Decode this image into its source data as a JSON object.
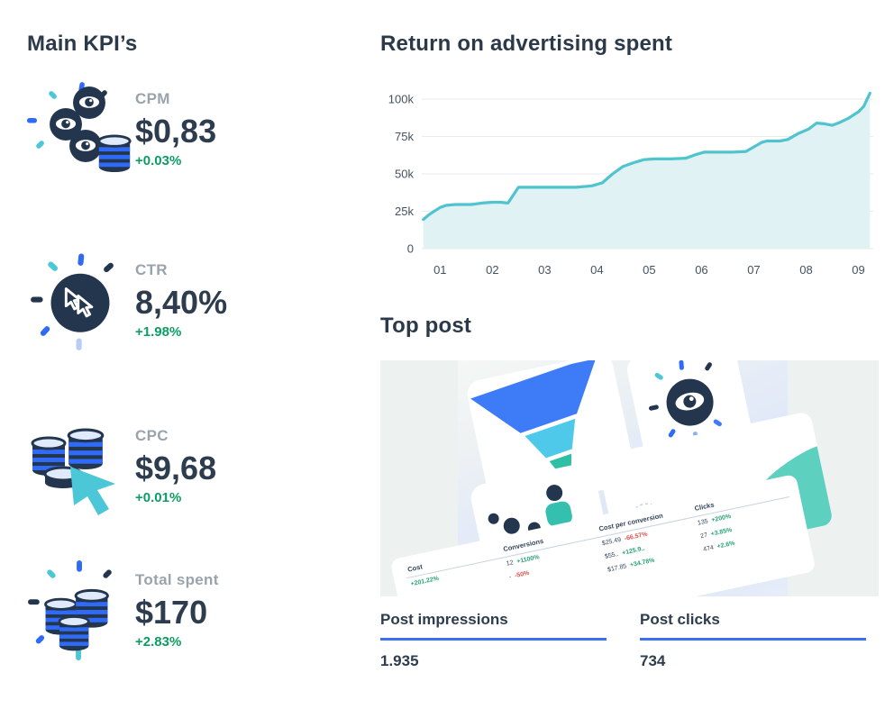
{
  "colors": {
    "navy_text": "#2d3c4e",
    "label_gray": "#99a3ac",
    "positive_green": "#0b9d63",
    "stat_underline_blue": "#3b70f1",
    "icon_blue": "#2f6bf6",
    "icon_teal": "#4cc7d7"
  },
  "kpi_section": {
    "title": "Main KPI’s",
    "items": [
      {
        "label": "CPM",
        "value": "$0,83",
        "delta": "+0.03%",
        "icon": "eyes-and-coins-icon"
      },
      {
        "label": "CTR",
        "value": "8,40%",
        "delta": "+1.98%",
        "icon": "click-cursor-circle-icon"
      },
      {
        "label": "CPC",
        "value": "$9,68",
        "delta": "+0.01%",
        "icon": "coins-with-cursor-icon"
      },
      {
        "label": "Total spent",
        "value": "$170",
        "delta": "+2.83%",
        "icon": "coin-stacks-sparkle-icon"
      }
    ]
  },
  "roas_section": {
    "title": "Return on advertising spent"
  },
  "chart_data": {
    "type": "area",
    "title": "Return on advertising spent",
    "x_ticks": [
      "01",
      "02",
      "03",
      "04",
      "05",
      "06",
      "07",
      "08",
      "09"
    ],
    "y_ticks": [
      "0",
      "25k",
      "50k",
      "75k",
      "100k"
    ],
    "y_values": [
      0,
      25000,
      50000,
      75000,
      100000
    ],
    "x_range": [
      0.65,
      9.25
    ],
    "ylim": [
      0,
      110000
    ],
    "grid": true,
    "legend": false,
    "line_color": "#4fc4cf",
    "fill_color": "#e1f2f5",
    "points": [
      [
        0.68,
        19500
      ],
      [
        0.8,
        23000
      ],
      [
        1.0,
        27500
      ],
      [
        1.12,
        29000
      ],
      [
        1.3,
        29500
      ],
      [
        1.6,
        29500
      ],
      [
        1.8,
        30500
      ],
      [
        2.0,
        31000
      ],
      [
        2.15,
        31000
      ],
      [
        2.3,
        30500
      ],
      [
        2.5,
        41000
      ],
      [
        2.8,
        41000
      ],
      [
        3.2,
        41000
      ],
      [
        3.6,
        41000
      ],
      [
        3.9,
        42000
      ],
      [
        4.1,
        44000
      ],
      [
        4.3,
        50000
      ],
      [
        4.5,
        55000
      ],
      [
        4.7,
        57500
      ],
      [
        4.9,
        59500
      ],
      [
        5.1,
        60000
      ],
      [
        5.4,
        60000
      ],
      [
        5.7,
        60500
      ],
      [
        5.9,
        63000
      ],
      [
        6.05,
        64500
      ],
      [
        6.35,
        64500
      ],
      [
        6.6,
        64500
      ],
      [
        6.85,
        65000
      ],
      [
        7.0,
        68000
      ],
      [
        7.15,
        71000
      ],
      [
        7.25,
        72000
      ],
      [
        7.5,
        72000
      ],
      [
        7.65,
        73000
      ],
      [
        7.85,
        77000
      ],
      [
        8.05,
        80000
      ],
      [
        8.2,
        84000
      ],
      [
        8.35,
        83500
      ],
      [
        8.5,
        82500
      ],
      [
        8.65,
        84500
      ],
      [
        8.8,
        87000
      ],
      [
        9.0,
        91500
      ],
      [
        9.1,
        95000
      ],
      [
        9.22,
        104000
      ]
    ]
  },
  "top_post_section": {
    "title": "Top post",
    "stats": [
      {
        "label": "Post impressions",
        "value": "1.935"
      },
      {
        "label": "Post clicks",
        "value": "734"
      }
    ],
    "illustration": {
      "icons": [
        "funnel-chart-icon",
        "eye-icon",
        "people-group-icon",
        "area-wave-chart-icon",
        "metrics-table"
      ],
      "table": {
        "headers": [
          "Cost",
          "Conversions",
          "Cost per conversion",
          "Clicks"
        ],
        "rows": [
          [
            {
              "v": "",
              "d": "+201.22%",
              "neg": false
            },
            {
              "v": "12",
              "d": "+1100%",
              "neg": false
            },
            {
              "v": "$25.49",
              "d": "-66.57%",
              "neg": true
            },
            {
              "v": "135",
              "d": "+200%",
              "neg": false
            }
          ],
          [
            {
              "v": "",
              "d": "",
              "neg": false
            },
            {
              "v": "-",
              "d": "-50%",
              "neg": true
            },
            {
              "v": "$55..",
              "d": "+125.9..",
              "neg": false
            },
            {
              "v": "27",
              "d": "+3.85%",
              "neg": false
            }
          ],
          [
            {
              "v": "",
              "d": "",
              "neg": false
            },
            {
              "v": "",
              "d": "",
              "neg": false
            },
            {
              "v": "$17.85",
              "d": "+34.78%",
              "neg": false
            },
            {
              "v": "474",
              "d": "+2.6%",
              "neg": false
            }
          ]
        ]
      }
    }
  }
}
